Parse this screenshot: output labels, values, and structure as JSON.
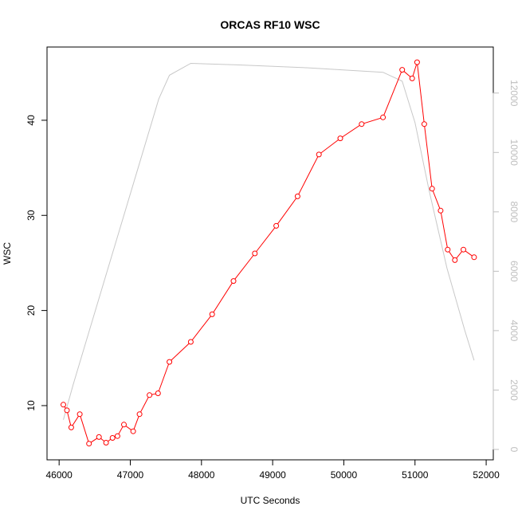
{
  "chart_data": {
    "type": "line",
    "title": "ORCAS RF10 WSC",
    "xlabel": "UTC Seconds",
    "ylabel": "WSC",
    "xlim": [
      45830,
      52100
    ],
    "ylim": [
      4.3,
      47.7
    ],
    "y2lim": [
      -350,
      13550
    ],
    "x_ticks": [
      46000,
      47000,
      48000,
      49000,
      50000,
      51000,
      52000
    ],
    "x_tick_labels": [
      "46000",
      "47000",
      "48000",
      "49000",
      "50000",
      "51000",
      "52000"
    ],
    "y_ticks": [
      10,
      20,
      30,
      40
    ],
    "y_tick_labels": [
      "10",
      "20",
      "30",
      "40"
    ],
    "y2_ticks": [
      0,
      2000,
      4000,
      6000,
      8000,
      10000,
      12000
    ],
    "y2_tick_labels": [
      "0",
      "2000",
      "4000",
      "6000",
      "8000",
      "10000",
      "12000"
    ],
    "colors": {
      "wsc": "#ff0000",
      "secondary": "#c8c8c8",
      "secondary_axis": "#bebebe",
      "frame": "#000000"
    },
    "grid": false,
    "series": [
      {
        "axis": "left",
        "style": "line+points",
        "x": [
          46060,
          46110,
          46170,
          46290,
          46420,
          46560,
          46660,
          46750,
          46820,
          46910,
          47040,
          47130,
          47270,
          47390,
          47550,
          47850,
          48150,
          48450,
          48750,
          49050,
          49350,
          49650,
          49950,
          50250,
          50550,
          50820,
          50960,
          51030,
          51130,
          51240,
          51360,
          51460,
          51560,
          51680,
          51830
        ],
        "y": [
          10.1,
          9.5,
          7.7,
          9.1,
          6.0,
          6.7,
          6.1,
          6.6,
          6.8,
          8.0,
          7.3,
          9.1,
          11.1,
          11.3,
          14.6,
          16.7,
          19.6,
          23.1,
          26.0,
          28.9,
          32.0,
          36.4,
          38.1,
          39.6,
          40.3,
          45.3,
          44.4,
          46.1,
          39.6,
          32.8,
          30.5,
          26.4,
          25.3,
          26.4,
          25.6
        ]
      },
      {
        "axis": "right",
        "style": "line",
        "x": [
          46060,
          46200,
          46500,
          46800,
          47100,
          47400,
          47550,
          47850,
          48500,
          49500,
          50550,
          50820,
          51000,
          51200,
          51450,
          51700,
          51830
        ],
        "y": [
          1000,
          2200,
          4600,
          7000,
          9400,
          11800,
          12600,
          13000,
          12950,
          12850,
          12700,
          12400,
          11000,
          8700,
          6100,
          4000,
          3000
        ]
      }
    ]
  }
}
